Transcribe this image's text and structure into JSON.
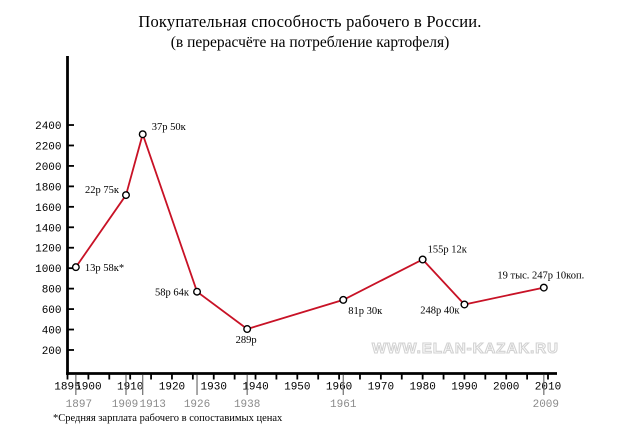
{
  "page": {
    "title": "Покупательная способность рабочего в России.",
    "subtitle": "(в перерасчёте на потребление картофеля)",
    "footnote": "*Средняя зарплата рабочего в сопоставимых ценах",
    "watermark": "WWW.ELAN-KAZAK.RU"
  },
  "colors": {
    "line": "#c81226",
    "axis": "#000000",
    "tick_label": "#000000",
    "secondary_label": "#8a8a8a",
    "leader_line": "#6e6e6e",
    "marker_fill": "#ffffff",
    "marker_stroke": "#000000",
    "watermark_outline": "#d2d2d2",
    "background": "#ffffff"
  },
  "chart_data": {
    "type": "line",
    "title": "Покупательная способность рабочего в России.",
    "subtitle": "(в перерасчёте на потребление картофеля)",
    "x": [
      1897,
      1909,
      1913,
      1926,
      1938,
      1961,
      1980,
      1990,
      2009
    ],
    "values": [
      1010,
      1715,
      2310,
      770,
      405,
      690,
      1085,
      645,
      810
    ],
    "point_labels": [
      "13р 58к*",
      "22р 75к",
      "37р 50к",
      "58р 64к",
      "289р",
      "81р 30к",
      "155р 12к",
      "248р 40к",
      "19 тыс. 247р 10коп."
    ],
    "label_offsets": [
      [
        9,
        4,
        "start"
      ],
      [
        -7,
        -2,
        "end"
      ],
      [
        9,
        -4,
        "start"
      ],
      [
        -8,
        4,
        "end"
      ],
      [
        -1,
        14,
        "middle"
      ],
      [
        5,
        14,
        "start"
      ],
      [
        5,
        -7,
        "start"
      ],
      [
        -5,
        9,
        "end"
      ],
      [
        -3,
        -9,
        "middle"
      ]
    ],
    "xlim": [
      1895,
      2010
    ],
    "ylim": [
      -30,
      3075
    ],
    "x_tick_step": 5,
    "x_tick_labels": [
      1895,
      1900,
      1910,
      1920,
      1930,
      1940,
      1950,
      1960,
      1970,
      1980,
      1990,
      2000,
      2010
    ],
    "y_ticks": [
      200,
      400,
      600,
      800,
      1000,
      1200,
      1400,
      1600,
      1800,
      2000,
      2200,
      2400
    ],
    "secondary_x_labels": [
      1897,
      1909,
      1913,
      1926,
      1938,
      1961,
      2009
    ],
    "grid": false,
    "legend": false,
    "marker": "open-circle"
  }
}
